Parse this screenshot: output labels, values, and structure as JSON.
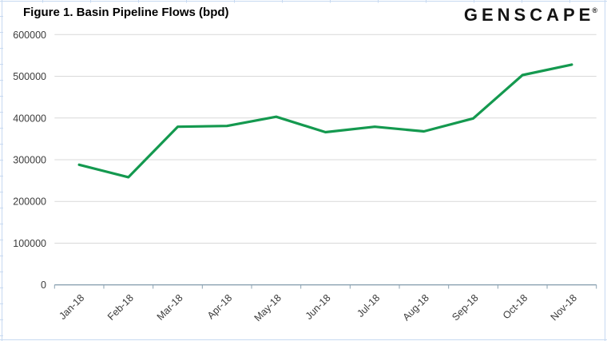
{
  "header": {
    "logo_text": "GENSCAPE",
    "logo_registered": "®"
  },
  "chart_data": {
    "type": "line",
    "title": "Figure 1. Basin Pipeline Flows (bpd)",
    "xlabel": "",
    "ylabel": "",
    "categories": [
      "Jan-18",
      "Feb-18",
      "Mar-18",
      "Apr-18",
      "May-18",
      "Jun-18",
      "Jul-18",
      "Aug-18",
      "Sep-18",
      "Oct-18",
      "Nov-18"
    ],
    "values": [
      288000,
      258000,
      379000,
      381000,
      403000,
      366000,
      379000,
      368000,
      399000,
      503000,
      528000
    ],
    "series_name": "Basin Pipeline Flows (bpd)",
    "ylim": [
      0,
      600000
    ],
    "yticks": [
      0,
      100000,
      200000,
      300000,
      400000,
      500000,
      600000
    ],
    "grid": true,
    "legend": "none",
    "line_color": "#14994F",
    "axis_color": "#8CA3B3",
    "gridline_color": "#D9D9D9",
    "label_color": "#3C3C3C",
    "worksheet_edge_color": "#C7D9F1"
  }
}
